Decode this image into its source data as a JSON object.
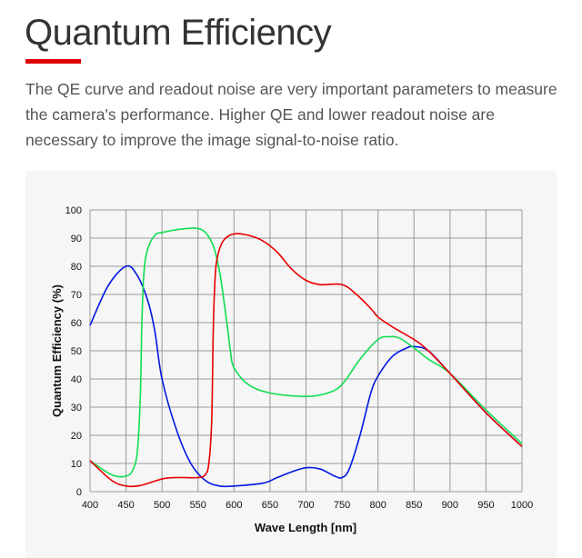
{
  "header": {
    "title": "Quantum Efficiency",
    "accent": "#e00000",
    "description": "The QE curve and readout noise are very important parameters to measure the camera's performance. Higher QE and lower readout noise are necessary to improve the image signal-to-noise ratio."
  },
  "chart_data": {
    "type": "line",
    "xlabel": "Wave Length [nm]",
    "ylabel": "Quantum Efficiency (%)",
    "xlim": [
      400,
      1000
    ],
    "ylim": [
      0,
      100
    ],
    "grid": true,
    "xticks": [
      "400",
      "450",
      "500",
      "550",
      "600",
      "650",
      "700",
      "750",
      "800",
      "850",
      "900",
      "950",
      "1000"
    ],
    "yticks": [
      "0",
      "10",
      "20",
      "30",
      "40",
      "50",
      "60",
      "70",
      "80",
      "90",
      "100"
    ],
    "series": [
      {
        "name": "Blue",
        "color": "#0018e0",
        "x": [
          400,
          425,
          450,
          465,
          480,
          490,
          500,
          520,
          540,
          560,
          580,
          600,
          640,
          660,
          680,
          700,
          720,
          740,
          750,
          760,
          775,
          790,
          800,
          820,
          840,
          850,
          870,
          900,
          950,
          1000
        ],
        "y": [
          59,
          73,
          80,
          77,
          68,
          57,
          40,
          22,
          10,
          4,
          2,
          2,
          3,
          5,
          7,
          8.5,
          8,
          5.5,
          5,
          8,
          20,
          35,
          41,
          48,
          51,
          51.5,
          50,
          42,
          28,
          16
        ]
      },
      {
        "name": "Green",
        "color": "#10dd50",
        "x": [
          400,
          430,
          450,
          460,
          466,
          470,
          472,
          475,
          480,
          490,
          500,
          530,
          555,
          570,
          580,
          590,
          595,
          600,
          620,
          650,
          700,
          730,
          750,
          775,
          800,
          815,
          830,
          850,
          870,
          900,
          950,
          1000
        ],
        "y": [
          11,
          6,
          5.5,
          8,
          15,
          35,
          60,
          78,
          86,
          91,
          92,
          93.3,
          93,
          88,
          78,
          60,
          50,
          44,
          38,
          35,
          33.8,
          35,
          38,
          47,
          54,
          55,
          54.5,
          51,
          47,
          42,
          29,
          17
        ]
      },
      {
        "name": "Red",
        "color": "#e80000",
        "x": [
          400,
          430,
          450,
          470,
          500,
          520,
          550,
          560,
          565,
          569,
          571,
          573,
          576,
          585,
          600,
          620,
          640,
          660,
          680,
          700,
          720,
          750,
          770,
          790,
          800,
          820,
          850,
          870,
          900,
          950,
          1000
        ],
        "y": [
          11,
          4,
          2,
          2.2,
          4.5,
          5,
          5,
          6,
          10,
          25,
          55,
          72,
          82,
          89,
          91.5,
          91,
          89,
          85,
          79,
          75,
          73.5,
          73.5,
          70,
          65,
          62,
          58.5,
          54,
          50,
          42,
          28,
          16
        ]
      }
    ]
  }
}
